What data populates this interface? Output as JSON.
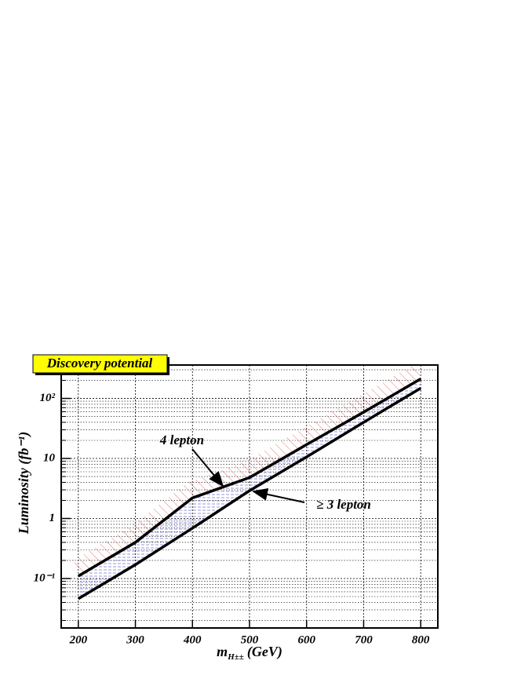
{
  "chart_data": {
    "type": "line",
    "title": "Discovery potential",
    "x_label": {
      "symbol": "m",
      "subscript": "H±±",
      "unit": "(GeV)"
    },
    "y_label": "Luminosity (fb⁻¹)",
    "x": [
      200,
      300,
      400,
      500,
      600,
      700,
      800
    ],
    "series": [
      {
        "name": "4 lepton",
        "color": "#000000",
        "hatch_color": "#e05050",
        "values": [
          0.11,
          0.4,
          2.2,
          4.8,
          17,
          59,
          212
        ]
      },
      {
        "name": "≥ 3 lepton",
        "color": "#000000",
        "hatch_color": "#5050c8",
        "values": [
          0.046,
          0.17,
          0.69,
          2.9,
          10.6,
          40,
          148
        ]
      }
    ],
    "xlim": [
      170,
      830
    ],
    "ylim": [
      0.015,
      360
    ],
    "ylog": true,
    "xticks": [
      200,
      300,
      400,
      500,
      600,
      700,
      800
    ],
    "yticks": [
      {
        "value": 0.1,
        "label": "10⁻¹"
      },
      1,
      10,
      {
        "value": 100,
        "label": "10²"
      }
    ],
    "grid": true,
    "yminor": true
  }
}
